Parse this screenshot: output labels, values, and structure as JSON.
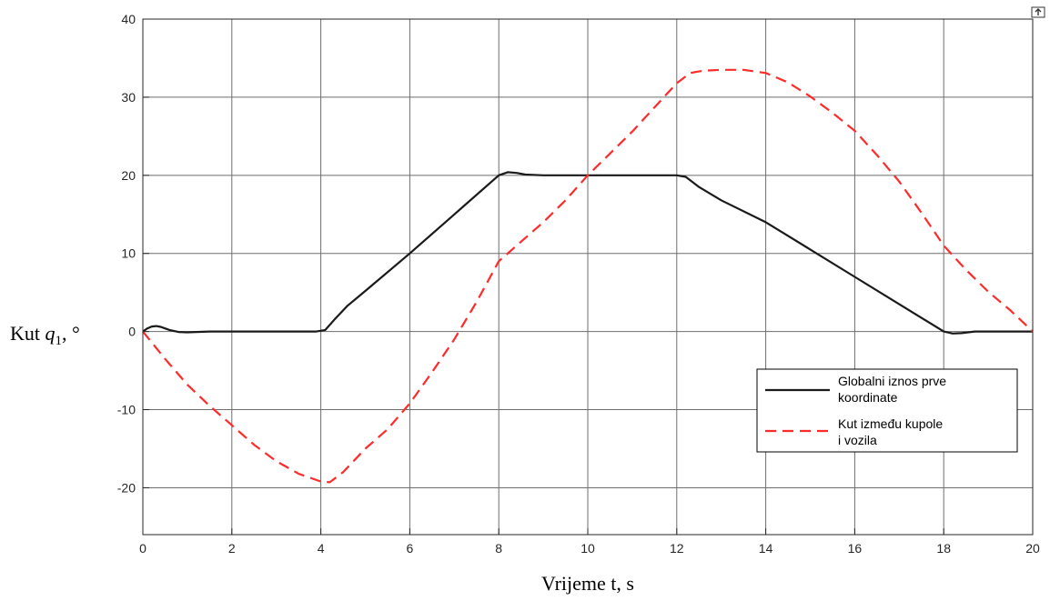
{
  "chart_data": {
    "type": "line",
    "title": "",
    "xlabel": "Vrijeme t, s",
    "ylabel": "Kut q₁, °",
    "ylabel_parts": {
      "prefix": "Kut ",
      "var": "q",
      "sub": "1",
      "suffix": ", °"
    },
    "xlim": [
      0,
      20
    ],
    "ylim": [
      -26,
      40
    ],
    "xticks": [
      0,
      2,
      4,
      6,
      8,
      10,
      12,
      14,
      16,
      18,
      20
    ],
    "yticks": [
      -20,
      -10,
      0,
      10,
      20,
      30,
      40
    ],
    "grid": true,
    "legend_position": "lower-right",
    "series": [
      {
        "name": "Globalni iznos prve koordinate",
        "name_lines": [
          "Globalni iznos prve",
          "koordinate"
        ],
        "color": "#1a1a1a",
        "style": "solid",
        "x": [
          0,
          0.1,
          0.2,
          0.3,
          0.4,
          0.5,
          0.6,
          0.8,
          1.0,
          1.5,
          2.0,
          3.0,
          3.9,
          4.1,
          4.3,
          4.6,
          5.0,
          6.0,
          7.0,
          8.0,
          8.2,
          8.4,
          8.6,
          9.0,
          10.0,
          11.0,
          12.0,
          12.2,
          12.5,
          13.0,
          14.0,
          15.0,
          16.0,
          17.0,
          18.0,
          18.2,
          18.4,
          18.7,
          19.0,
          20.0
        ],
        "y": [
          0,
          0.4,
          0.65,
          0.7,
          0.6,
          0.4,
          0.2,
          -0.05,
          -0.1,
          0,
          0,
          0,
          0,
          0.2,
          1.5,
          3.3,
          5.2,
          10,
          15,
          20,
          20.4,
          20.3,
          20.1,
          20,
          20,
          20,
          20,
          19.8,
          18.5,
          16.8,
          14,
          10.5,
          7,
          3.5,
          0,
          -0.25,
          -0.2,
          0,
          0,
          0
        ]
      },
      {
        "name": "Kut između kupole i vozila",
        "name_lines": [
          "Kut između kupole",
          "i vozila"
        ],
        "color": "#ff2a2a",
        "style": "dashed",
        "x": [
          0,
          0.5,
          1,
          1.5,
          2,
          2.5,
          3,
          3.5,
          4,
          4.2,
          4.5,
          5,
          5.5,
          6,
          6.5,
          7,
          7.5,
          8,
          8.3,
          9,
          9.5,
          10,
          10.5,
          11,
          11.5,
          12,
          12.3,
          12.6,
          13,
          13.5,
          14,
          14.5,
          15,
          15.5,
          16,
          16.5,
          17,
          17.5,
          18,
          18.5,
          19,
          19.5,
          20
        ],
        "y": [
          0,
          -3.5,
          -6.8,
          -9.5,
          -12,
          -14.5,
          -16.6,
          -18.2,
          -19.2,
          -19.3,
          -18,
          -15,
          -12.5,
          -9.2,
          -5.2,
          -1,
          3.8,
          9,
          10.5,
          14,
          16.8,
          20,
          22.8,
          25.6,
          28.7,
          31.8,
          33.1,
          33.4,
          33.5,
          33.5,
          33.1,
          31.9,
          30.1,
          28,
          25.7,
          22.6,
          19.2,
          15.2,
          11,
          7.9,
          5.1,
          2.7,
          0
        ]
      }
    ]
  },
  "legend_labels": {
    "s1_line1": "Globalni iznos prve",
    "s1_line2": "koordinate",
    "s2_line1": "Kut između kupole",
    "s2_line2": "i vozila"
  }
}
